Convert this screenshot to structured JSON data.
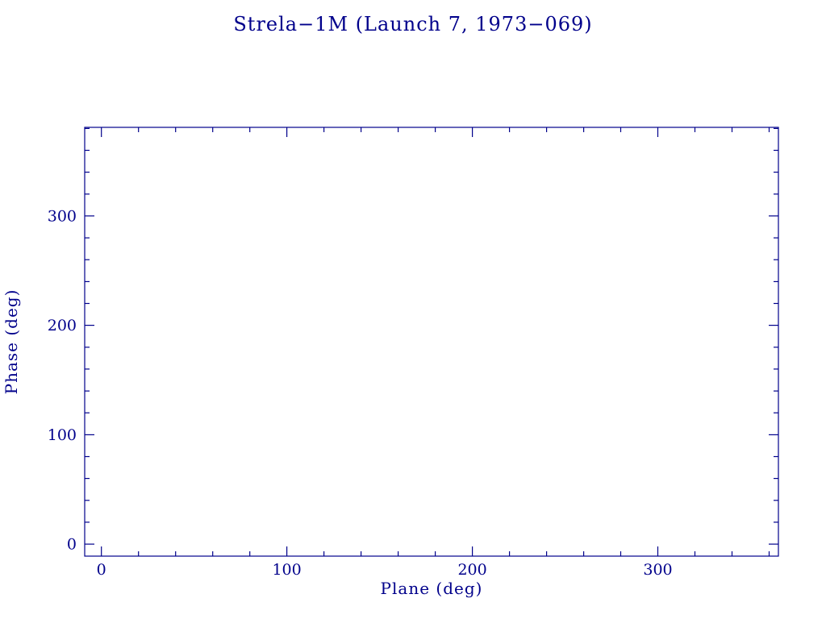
{
  "page": {
    "background_color": "#ffffff",
    "accent_color": "#00008B"
  },
  "chart_data": {
    "type": "scatter",
    "title": "Strela−1M (Launch 7, 1973−069)",
    "xlabel": "Plane (deg)",
    "ylabel": "Phase (deg)",
    "xlim": [
      -9,
      365
    ],
    "ylim": [
      -11,
      381
    ],
    "xticks": [
      0,
      100,
      200,
      300
    ],
    "yticks": [
      0,
      100,
      200,
      300
    ],
    "minor_tick_step": 20,
    "grid": false,
    "legend": "none",
    "series": []
  }
}
